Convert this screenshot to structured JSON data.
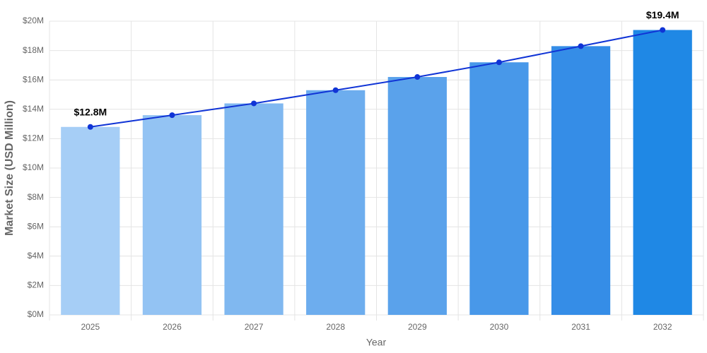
{
  "chart_data": {
    "type": "bar",
    "x_label": "Year",
    "y_label": "Market Size (USD Million)",
    "categories": [
      "2025",
      "2026",
      "2027",
      "2028",
      "2029",
      "2030",
      "2031",
      "2032"
    ],
    "values": [
      12.8,
      13.6,
      14.4,
      15.3,
      16.2,
      17.2,
      18.3,
      19.4
    ],
    "value_labels": [
      "$12.8M",
      null,
      null,
      null,
      null,
      null,
      null,
      "$19.4M"
    ],
    "colors": [
      "#a6cef6",
      "#93c3f3",
      "#80b8f0",
      "#6dadee",
      "#5aa2eb",
      "#4898e9",
      "#358de7",
      "#1f88e5"
    ],
    "line_color": "#1034d6",
    "ylim": [
      0,
      20
    ],
    "yticks": [
      {
        "value": 0,
        "label": "$0M"
      },
      {
        "value": 2,
        "label": "$2M"
      },
      {
        "value": 4,
        "label": "$4M"
      },
      {
        "value": 6,
        "label": "$6M"
      },
      {
        "value": 8,
        "label": "$8M"
      },
      {
        "value": 10,
        "label": "$10M"
      },
      {
        "value": 12,
        "label": "$12M"
      },
      {
        "value": 14,
        "label": "$14M"
      },
      {
        "value": 16,
        "label": "$16M"
      },
      {
        "value": 18,
        "label": "$18M"
      },
      {
        "value": 20,
        "label": "$20M"
      }
    ],
    "grid": true
  }
}
